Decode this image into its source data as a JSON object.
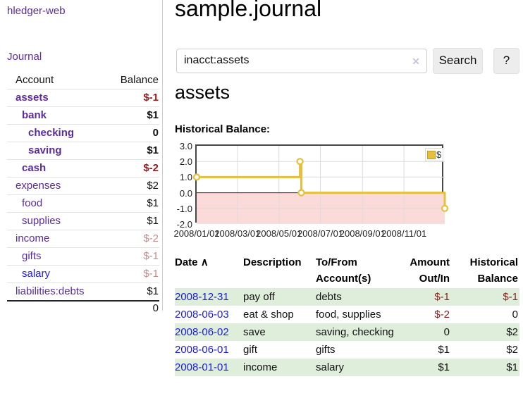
{
  "app": {
    "title": "hledger-web"
  },
  "sidebar": {
    "journal_label": "Journal",
    "account_header": "Account",
    "balance_header": "Balance",
    "accounts": [
      {
        "label": "assets",
        "indent": 1,
        "bold": true,
        "balance": "$-1",
        "tone": "neg-strong"
      },
      {
        "label": "bank",
        "indent": 2,
        "bold": true,
        "balance": "$1",
        "tone": ""
      },
      {
        "label": "checking",
        "indent": 3,
        "bold": true,
        "balance": "0",
        "tone": ""
      },
      {
        "label": "saving",
        "indent": 3,
        "bold": true,
        "balance": "$1",
        "tone": ""
      },
      {
        "label": "cash",
        "indent": 2,
        "bold": true,
        "balance": "$-2",
        "tone": "neg-strong"
      },
      {
        "label": "expenses",
        "indent": 1,
        "bold": false,
        "balance": "$2",
        "tone": ""
      },
      {
        "label": "food",
        "indent": 2,
        "bold": false,
        "balance": "$1",
        "tone": ""
      },
      {
        "label": "supplies",
        "indent": 2,
        "bold": false,
        "balance": "$1",
        "tone": ""
      },
      {
        "label": "income",
        "indent": 1,
        "bold": false,
        "balance": "$-2",
        "tone": "neg-soft"
      },
      {
        "label": "gifts",
        "indent": 2,
        "bold": false,
        "balance": "$-1",
        "tone": "neg-soft"
      },
      {
        "label": "salary",
        "indent": 2,
        "bold": false,
        "balance": "$-1",
        "tone": "neg-soft",
        "link_blue": true
      },
      {
        "label": "liabilities:debts",
        "indent": 1,
        "bold": false,
        "balance": "$1",
        "tone": ""
      }
    ],
    "total": "0"
  },
  "main": {
    "page_title": "sample.journal",
    "search": {
      "value": "inacct:assets",
      "clear_icon": "✕",
      "button_label": "Search",
      "help_label": "?"
    },
    "section_title": "assets",
    "chart_label": "Historical Balance:"
  },
  "chart_data": {
    "type": "line",
    "style": "step",
    "title": "Historical Balance",
    "legend": [
      {
        "label": "$",
        "color": "#e7bf3c"
      }
    ],
    "legend_position": "top-right",
    "points": [
      {
        "date": "2008-01-01",
        "value": 1
      },
      {
        "date": "2008-06-01",
        "value": 2
      },
      {
        "date": "2008-06-03",
        "value": 0
      },
      {
        "date": "2008-12-31",
        "value": -1
      }
    ],
    "x_range": [
      "2008-01-01",
      "2008-12-31"
    ],
    "xticks": [
      "2008/01/01",
      "2008/03/01",
      "2008/05/01",
      "2008/07/01",
      "2008/09/01",
      "2008/11/01"
    ],
    "yticks": [
      "3.0",
      "2.0",
      "1.0",
      "0.0",
      "-1.0",
      "-2.0"
    ],
    "ylim": [
      -2,
      3
    ],
    "grid": true,
    "line_color": "#e7bf3c",
    "negative_fill": "#fbdada",
    "zero_line_color": "#8b0000",
    "grid_color": "#dcdcdc"
  },
  "table": {
    "headers": [
      "Date",
      "Description",
      "To/From Account(s)",
      "Amount Out/In",
      "Historical Balance"
    ],
    "sort_indicator": "∧",
    "rows": [
      {
        "date": "2008-12-31",
        "description": "pay off",
        "accounts": "debts",
        "amount": "$-1",
        "balance": "$-1"
      },
      {
        "date": "2008-06-03",
        "description": "eat & shop",
        "accounts": "food, supplies",
        "amount": "$-2",
        "balance": "0"
      },
      {
        "date": "2008-06-02",
        "description": "save",
        "accounts": "saving, checking",
        "amount": "0",
        "balance": "$2"
      },
      {
        "date": "2008-06-01",
        "description": "gift",
        "accounts": "gifts",
        "amount": "$1",
        "balance": "$2"
      },
      {
        "date": "2008-01-01",
        "description": "income",
        "accounts": "salary",
        "amount": "$1",
        "balance": "$1"
      }
    ]
  },
  "colors": {
    "link_purple": "#5a2ca0",
    "link_blue": "#1b1bdb",
    "negative_strong": "#9a1a1a",
    "negative_soft": "#c38b8b",
    "row_stripe_green": "#dfeeda",
    "chart_line_gold": "#e7bf3c"
  }
}
